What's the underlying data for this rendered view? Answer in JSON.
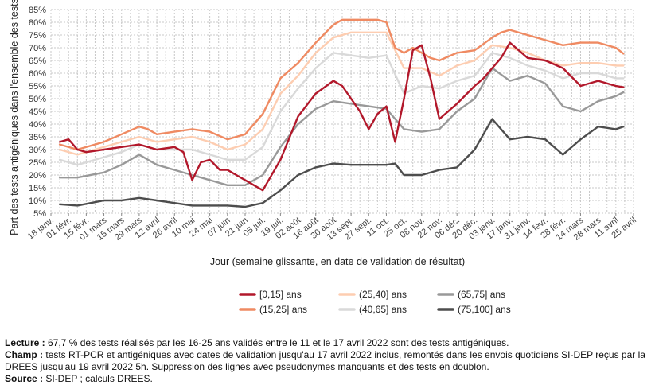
{
  "chart_data": {
    "type": "line",
    "title": "",
    "xlabel": "Jour (semaine glissante, en date de validation de résultat)",
    "ylabel": "Part des tests antigéniques dans l'ensemble des tests",
    "ylim": [
      5,
      85
    ],
    "y_ticks": [
      "5%",
      "10%",
      "15%",
      "20%",
      "25%",
      "30%",
      "35%",
      "40%",
      "45%",
      "50%",
      "55%",
      "60%",
      "65%",
      "70%",
      "75%",
      "80%",
      "85%"
    ],
    "x_ticks": [
      "18 janv.",
      "01 févr.",
      "15 févr.",
      "01 mars",
      "15 mars",
      "29 mars",
      "12 avril",
      "26 avril",
      "10 mai",
      "24 mai",
      "07 juin",
      "21 juin",
      "05 juil.",
      "19 juil.",
      "02 août",
      "16 août",
      "30 août",
      "13 sept.",
      "27 sept.",
      "11 oct.",
      "25 oct.",
      "08 nov.",
      "22 nov.",
      "06 déc.",
      "20 déc.",
      "03 janv.",
      "17 janv.",
      "31 janv.",
      "14 févr.",
      "28 févr.",
      "14 mars",
      "28 mars",
      "11 avril",
      "25 avril"
    ],
    "x_tick_dates": [
      "2021-01-18",
      "2021-02-01",
      "2021-02-15",
      "2021-03-01",
      "2021-03-15",
      "2021-03-29",
      "2021-04-12",
      "2021-04-26",
      "2021-05-10",
      "2021-05-24",
      "2021-06-07",
      "2021-06-21",
      "2021-07-05",
      "2021-07-19",
      "2021-08-02",
      "2021-08-16",
      "2021-08-30",
      "2021-09-13",
      "2021-09-27",
      "2021-10-11",
      "2021-10-25",
      "2021-11-08",
      "2021-11-22",
      "2021-12-06",
      "2021-12-20",
      "2022-01-03",
      "2022-01-17",
      "2022-01-31",
      "2022-02-14",
      "2022-02-28",
      "2022-03-14",
      "2022-03-28",
      "2022-04-11",
      "2022-04-25"
    ],
    "grid": true,
    "legend_position": "bottom",
    "series": [
      {
        "name": "[0,15] ans",
        "color": "#b2182b",
        "x": [
          "2021-01-25",
          "2021-02-01",
          "2021-02-08",
          "2021-02-15",
          "2021-03-01",
          "2021-03-15",
          "2021-03-29",
          "2021-04-05",
          "2021-04-12",
          "2021-04-26",
          "2021-05-03",
          "2021-05-10",
          "2021-05-17",
          "2021-05-24",
          "2021-06-01",
          "2021-06-07",
          "2021-06-14",
          "2021-06-21",
          "2021-06-28",
          "2021-07-05",
          "2021-07-19",
          "2021-08-02",
          "2021-08-16",
          "2021-08-30",
          "2021-09-06",
          "2021-09-20",
          "2021-09-27",
          "2021-10-04",
          "2021-10-11",
          "2021-10-18",
          "2021-10-25",
          "2021-11-01",
          "2021-11-08",
          "2021-11-15",
          "2021-11-22",
          "2021-12-06",
          "2021-12-20",
          "2021-12-27",
          "2022-01-03",
          "2022-01-10",
          "2022-01-17",
          "2022-01-31",
          "2022-02-14",
          "2022-02-28",
          "2022-03-14",
          "2022-03-28",
          "2022-04-11",
          "2022-04-17"
        ],
        "values": [
          33,
          34,
          30,
          29,
          30,
          31,
          32,
          31,
          30,
          31,
          29,
          18,
          25,
          26,
          22,
          22,
          20,
          18,
          16,
          14,
          26,
          43,
          52,
          57,
          55,
          45,
          38,
          44,
          47,
          33,
          50,
          69,
          71,
          58,
          42,
          48,
          55,
          58,
          62,
          66,
          72,
          66,
          65,
          62,
          55,
          57,
          55,
          54.5
        ]
      },
      {
        "name": "(15,25] ans",
        "color": "#ef8a62",
        "x": [
          "2021-01-25",
          "2021-02-08",
          "2021-03-01",
          "2021-03-15",
          "2021-03-29",
          "2021-04-05",
          "2021-04-12",
          "2021-04-26",
          "2021-05-10",
          "2021-05-24",
          "2021-06-07",
          "2021-06-21",
          "2021-07-05",
          "2021-07-19",
          "2021-08-02",
          "2021-08-16",
          "2021-08-30",
          "2021-09-06",
          "2021-09-20",
          "2021-10-04",
          "2021-10-11",
          "2021-10-18",
          "2021-10-25",
          "2021-11-01",
          "2021-11-15",
          "2021-11-22",
          "2021-12-06",
          "2021-12-20",
          "2022-01-03",
          "2022-01-10",
          "2022-01-17",
          "2022-01-31",
          "2022-02-14",
          "2022-02-28",
          "2022-03-14",
          "2022-03-28",
          "2022-04-11",
          "2022-04-17"
        ],
        "values": [
          32,
          30,
          33,
          36,
          39,
          38,
          36,
          37,
          38,
          37,
          34,
          36,
          44,
          58,
          64,
          72,
          79,
          81,
          81,
          81,
          80,
          70,
          68,
          70,
          66,
          65,
          68,
          69,
          74,
          76,
          77,
          75,
          73,
          71,
          72,
          72,
          70,
          67.7
        ]
      },
      {
        "name": "(25,40] ans",
        "color": "#fdcdb1",
        "x": [
          "2021-01-25",
          "2021-02-08",
          "2021-03-01",
          "2021-03-15",
          "2021-03-29",
          "2021-04-12",
          "2021-04-26",
          "2021-05-10",
          "2021-05-24",
          "2021-06-07",
          "2021-06-21",
          "2021-07-05",
          "2021-07-19",
          "2021-08-02",
          "2021-08-16",
          "2021-08-30",
          "2021-09-13",
          "2021-09-27",
          "2021-10-11",
          "2021-10-25",
          "2021-11-08",
          "2021-11-22",
          "2021-12-06",
          "2021-12-20",
          "2022-01-03",
          "2022-01-17",
          "2022-01-31",
          "2022-02-14",
          "2022-02-28",
          "2022-03-14",
          "2022-03-28",
          "2022-04-11",
          "2022-04-17"
        ],
        "values": [
          30,
          28,
          31,
          33,
          35,
          33,
          34,
          35,
          33,
          30,
          32,
          38,
          52,
          59,
          68,
          74,
          76,
          76,
          76,
          62,
          62,
          59,
          63,
          65,
          71,
          70,
          68,
          65,
          63,
          64,
          64,
          63,
          63
        ]
      },
      {
        "name": "(40,65] ans",
        "color": "#d9d9d9",
        "x": [
          "2021-01-25",
          "2021-02-08",
          "2021-03-01",
          "2021-03-15",
          "2021-03-29",
          "2021-04-12",
          "2021-04-26",
          "2021-05-10",
          "2021-05-24",
          "2021-06-07",
          "2021-06-21",
          "2021-07-05",
          "2021-07-19",
          "2021-08-02",
          "2021-08-16",
          "2021-08-30",
          "2021-09-13",
          "2021-09-27",
          "2021-10-11",
          "2021-10-25",
          "2021-11-08",
          "2021-11-22",
          "2021-12-06",
          "2021-12-20",
          "2022-01-03",
          "2022-01-17",
          "2022-01-31",
          "2022-02-14",
          "2022-02-28",
          "2022-03-14",
          "2022-03-28",
          "2022-04-11",
          "2022-04-17"
        ],
        "values": [
          26,
          24,
          27,
          29,
          32,
          30,
          30,
          30,
          28,
          26,
          26,
          31,
          45,
          54,
          62,
          68,
          67,
          66,
          67,
          52,
          55,
          54,
          57,
          59,
          68,
          66,
          63,
          61,
          58,
          60,
          60,
          58,
          58
        ]
      },
      {
        "name": "(65,75] ans",
        "color": "#999999",
        "x": [
          "2021-01-25",
          "2021-02-08",
          "2021-03-01",
          "2021-03-15",
          "2021-03-29",
          "2021-04-12",
          "2021-04-26",
          "2021-05-10",
          "2021-05-24",
          "2021-06-07",
          "2021-06-21",
          "2021-07-05",
          "2021-07-19",
          "2021-08-02",
          "2021-08-16",
          "2021-08-30",
          "2021-09-13",
          "2021-09-27",
          "2021-10-11",
          "2021-10-25",
          "2021-11-08",
          "2021-11-22",
          "2021-12-06",
          "2021-12-20",
          "2022-01-03",
          "2022-01-17",
          "2022-01-31",
          "2022-02-14",
          "2022-02-28",
          "2022-03-14",
          "2022-03-28",
          "2022-04-11",
          "2022-04-17"
        ],
        "values": [
          19,
          19,
          21,
          24,
          28,
          24,
          22,
          20,
          18,
          16,
          16,
          20,
          31,
          40,
          46,
          49,
          48,
          47,
          46,
          38,
          37,
          38,
          45,
          50,
          62,
          57,
          59,
          56,
          47,
          45,
          49,
          51,
          52.5
        ]
      },
      {
        "name": "(75,100] ans",
        "color": "#4d4d4d",
        "x": [
          "2021-01-25",
          "2021-02-08",
          "2021-03-01",
          "2021-03-15",
          "2021-03-29",
          "2021-04-12",
          "2021-04-26",
          "2021-05-10",
          "2021-05-24",
          "2021-06-07",
          "2021-06-21",
          "2021-07-05",
          "2021-07-19",
          "2021-08-02",
          "2021-08-16",
          "2021-08-30",
          "2021-09-13",
          "2021-09-27",
          "2021-10-11",
          "2021-10-18",
          "2021-10-25",
          "2021-11-08",
          "2021-11-22",
          "2021-12-06",
          "2021-12-20",
          "2022-01-03",
          "2022-01-17",
          "2022-01-31",
          "2022-02-14",
          "2022-02-28",
          "2022-03-14",
          "2022-03-28",
          "2022-04-11",
          "2022-04-17"
        ],
        "values": [
          8.5,
          8,
          10,
          10,
          11,
          10,
          9,
          8,
          8,
          8,
          7.5,
          9,
          14,
          20,
          23,
          24.5,
          24,
          24,
          24,
          24.5,
          20,
          20,
          22,
          23,
          30,
          42,
          34,
          35,
          34,
          28,
          34,
          39,
          38,
          39
        ]
      }
    ]
  },
  "notes": {
    "lecture_label": "Lecture :",
    "lecture_text": " 67,7 % des tests réalisés par les 16-25 ans validés entre le 11 et le 17 avril 2022 sont des tests antigéniques.",
    "champ_label": "Champ :",
    "champ_text": " tests RT-PCR et antigéniques avec dates de validation jusqu'au 17 avril 2022 inclus, remontés dans les envois quotidiens SI-DEP reçus par la DREES jusqu'au 19 avril 2022 5h. Suppression des lignes avec pseudonymes manquants et des tests en doublon.",
    "source_label": "Source :",
    "source_text": " SI-DEP ; calculs DREES."
  }
}
